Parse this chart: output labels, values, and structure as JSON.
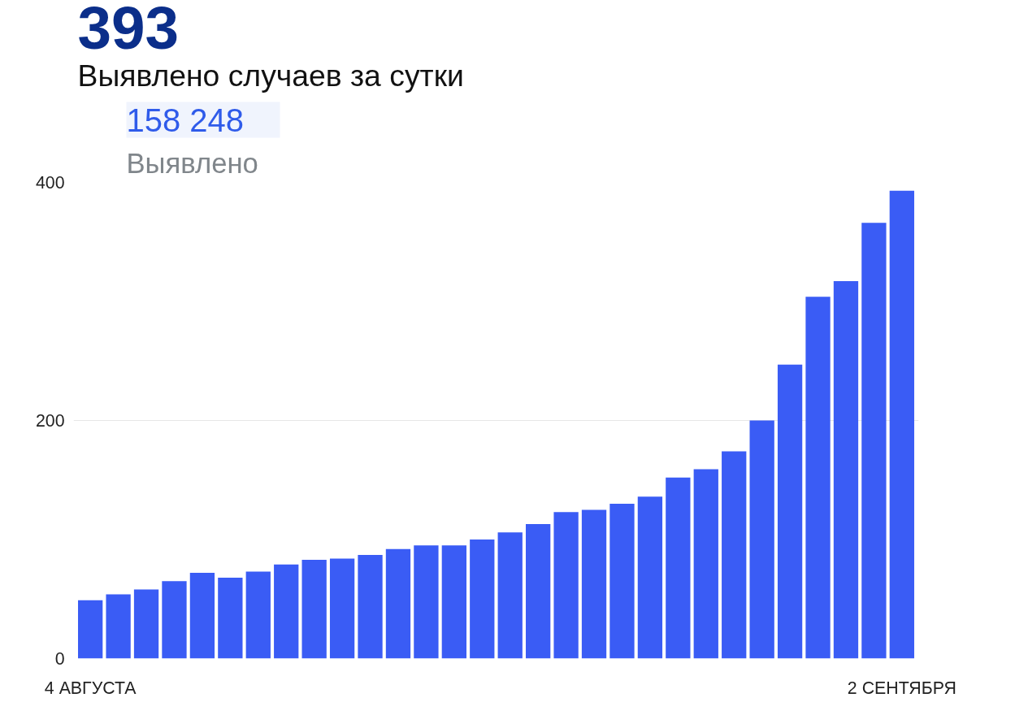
{
  "chart_data": {
    "type": "bar",
    "title": "393",
    "subtitle": "Выявлено случаев за сутки",
    "annotations": [
      "158 248",
      "Выявлено"
    ],
    "categories": [
      "4 АВГУСТА",
      null,
      null,
      null,
      null,
      null,
      null,
      null,
      null,
      null,
      null,
      null,
      null,
      null,
      null,
      null,
      null,
      null,
      null,
      null,
      null,
      null,
      null,
      null,
      null,
      null,
      null,
      null,
      null,
      "2 СЕНТЯБРЯ"
    ],
    "values": [
      49,
      54,
      58,
      65,
      72,
      68,
      73,
      79,
      83,
      84,
      87,
      92,
      95,
      95,
      100,
      106,
      113,
      123,
      125,
      130,
      136,
      152,
      159,
      174,
      200,
      247,
      304,
      317,
      366,
      393
    ],
    "color": "#3a5cf5",
    "ylim": [
      0,
      400
    ],
    "yticks": [
      0,
      200,
      400
    ],
    "grid": "y"
  }
}
